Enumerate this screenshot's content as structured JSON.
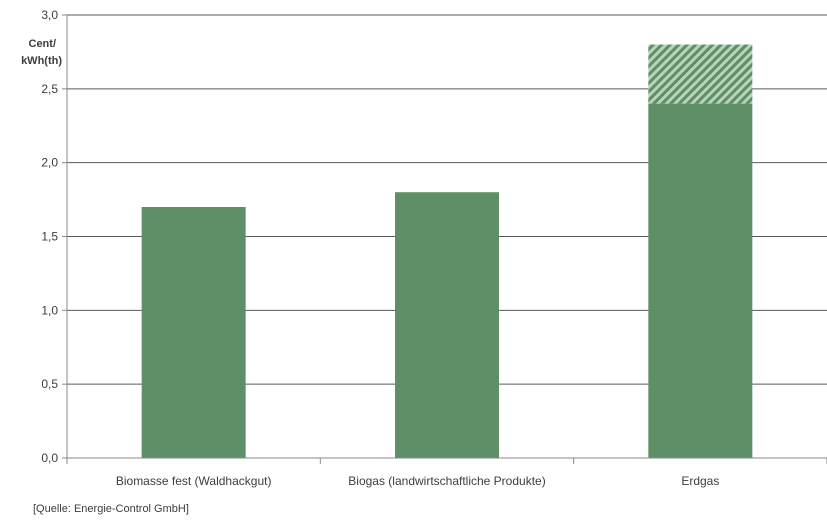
{
  "chart_data": {
    "type": "bar",
    "title": "",
    "ylabel_lines": [
      "Cent/",
      "kWh(th)"
    ],
    "xlabel": "",
    "ylim": [
      0,
      3.0
    ],
    "yticks": [
      0.0,
      0.5,
      1.0,
      1.5,
      2.0,
      2.5,
      3.0
    ],
    "ytick_labels": [
      "0,0",
      "0,5",
      "1,0",
      "1,5",
      "2,0",
      "2,5",
      "3,0"
    ],
    "categories": [
      "Biomasse fest (Waldhackgut)",
      "Biogas (landwirtschaftliche Produkte)",
      "Erdgas"
    ],
    "stacked": true,
    "series": [
      {
        "values": [
          1.7,
          1.8,
          2.4
        ]
      },
      {
        "values": [
          0,
          0,
          0.4
        ]
      }
    ],
    "grid": true,
    "colors": {
      "bar": "#5e8f66",
      "hatch_bg": "#b9d3bc",
      "grid": "#5a5a5a",
      "axis": "#8a8a8a"
    }
  },
  "source_note": "[Quelle: Energie-Control GmbH]"
}
